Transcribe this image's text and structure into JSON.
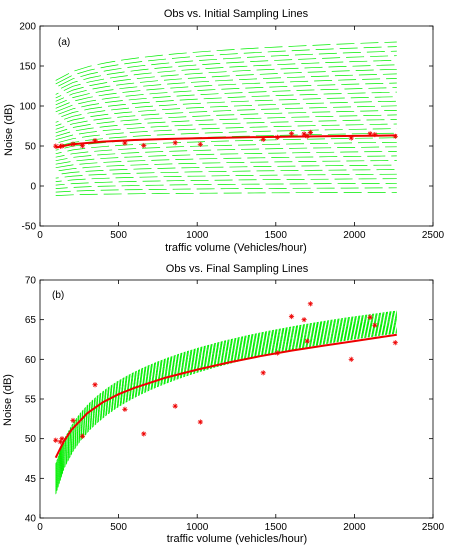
{
  "chart_data": [
    {
      "type": "line",
      "panel_label": "(a)",
      "title": "Obs vs. Initial Sampling Lines",
      "xlabel": "traffic volume (Vehicles/hour)",
      "ylabel": "Noise (dB)",
      "xlim": [
        0,
        2500
      ],
      "ylim": [
        -50,
        200
      ],
      "xticks": [
        0,
        500,
        1000,
        1500,
        2000,
        2500
      ],
      "yticks": [
        -50,
        0,
        50,
        100,
        150,
        200
      ],
      "grid": false,
      "colors": {
        "sampling": "#00ee00",
        "fit": "#ee0000",
        "obs": "#ee0000"
      },
      "sampling_lines": {
        "x_range": [
          100,
          2270
        ],
        "y_start_range": [
          -12,
          132
        ],
        "y_end_range": [
          -8,
          180
        ]
      },
      "series": [
        {
          "kind": "fit_line",
          "points": [
            [
              100,
              48
            ],
            [
              200,
              52
            ],
            [
              400,
              55.5
            ],
            [
              600,
              57.5
            ],
            [
              800,
              58.8
            ],
            [
              1000,
              59.7
            ],
            [
              1200,
              60.5
            ],
            [
              1400,
              61.1
            ],
            [
              1600,
              61.7
            ],
            [
              1800,
              62.2
            ],
            [
              2000,
              62.6
            ],
            [
              2270,
              63.2
            ]
          ]
        },
        {
          "kind": "observations",
          "marker": "*",
          "points": [
            [
              100,
              49.8
            ],
            [
              130,
              49.6
            ],
            [
              140,
              50
            ],
            [
              210,
              52.3
            ],
            [
              270,
              50.3
            ],
            [
              350,
              56.8
            ],
            [
              540,
              53.7
            ],
            [
              660,
              50.6
            ],
            [
              860,
              54.1
            ],
            [
              1020,
              52.1
            ],
            [
              1420,
              58.3
            ],
            [
              1510,
              60.8
            ],
            [
              1600,
              65.4
            ],
            [
              1680,
              65
            ],
            [
              1700,
              62.3
            ],
            [
              1720,
              67
            ],
            [
              1980,
              60
            ],
            [
              2100,
              65.3
            ],
            [
              2130,
              64.3
            ],
            [
              2260,
              62.1
            ]
          ]
        }
      ]
    },
    {
      "type": "line",
      "panel_label": "(b)",
      "title": "Obs vs. Final Sampling Lines",
      "xlabel": "traffic volume (vehicles/hour)",
      "ylabel": "Noise (dB)",
      "xlim": [
        0,
        2500
      ],
      "ylim": [
        40,
        70
      ],
      "xticks": [
        0,
        500,
        1000,
        1500,
        2000,
        2500
      ],
      "yticks": [
        40,
        45,
        50,
        55,
        60,
        65,
        70
      ],
      "grid": false,
      "colors": {
        "sampling": "#00ee00",
        "fit": "#ee0000",
        "obs": "#ee0000"
      },
      "sampling_band": {
        "x_range": [
          100,
          2270
        ],
        "lower_start": 43,
        "lower_end": 63.3,
        "upper_start": 46.8,
        "upper_end": 66.1
      },
      "series": [
        {
          "kind": "fit_line",
          "points": [
            [
              100,
              47.6
            ],
            [
              150,
              49.6
            ],
            [
              200,
              51.1
            ],
            [
              300,
              53.2
            ],
            [
              400,
              54.6
            ],
            [
              500,
              55.6
            ],
            [
              600,
              56.4
            ],
            [
              800,
              57.7
            ],
            [
              1000,
              58.7
            ],
            [
              1200,
              59.6
            ],
            [
              1400,
              60.4
            ],
            [
              1600,
              61.1
            ],
            [
              1800,
              61.7
            ],
            [
              2000,
              62.3
            ],
            [
              2270,
              63.1
            ]
          ]
        },
        {
          "kind": "observations",
          "marker": "*",
          "points": [
            [
              100,
              49.8
            ],
            [
              130,
              49.6
            ],
            [
              140,
              50
            ],
            [
              210,
              52.3
            ],
            [
              270,
              50.3
            ],
            [
              350,
              56.8
            ],
            [
              540,
              53.7
            ],
            [
              660,
              50.6
            ],
            [
              860,
              54.1
            ],
            [
              1020,
              52.1
            ],
            [
              1420,
              58.3
            ],
            [
              1510,
              60.8
            ],
            [
              1600,
              65.4
            ],
            [
              1680,
              65
            ],
            [
              1700,
              62.3
            ],
            [
              1720,
              67
            ],
            [
              1980,
              60
            ],
            [
              2100,
              65.3
            ],
            [
              2130,
              64.3
            ],
            [
              2260,
              62.1
            ]
          ]
        }
      ]
    }
  ]
}
